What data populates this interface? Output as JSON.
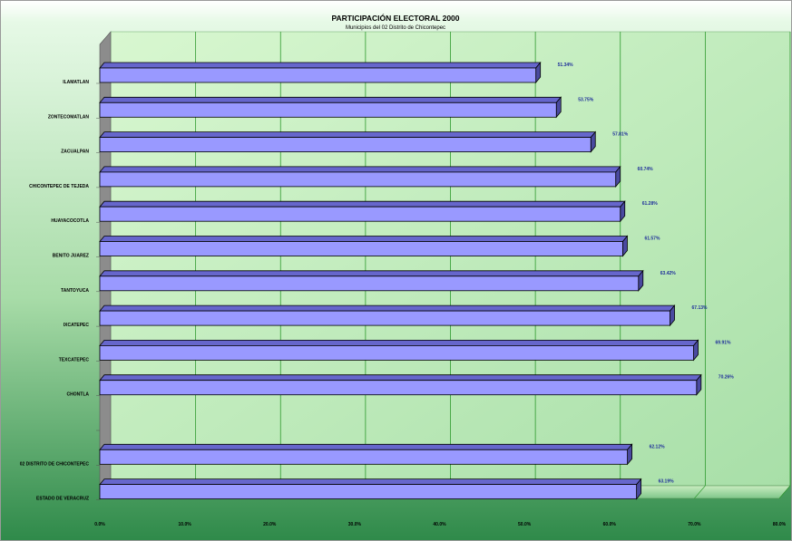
{
  "chart_data": {
    "type": "bar",
    "orientation": "horizontal",
    "style": "3d",
    "title": "PARTICIPACIÓN ELECTORAL 2000",
    "subtitle": "Municipios del 02 Distrito de Chicontepec",
    "categories": [
      "ILAMATLAN",
      "ZONTECOMATLAN",
      "ZACUALPAN",
      "CHICONTEPEC DE TEJEDA",
      "HUAYACOCOTLA",
      "BENITO JUAREZ",
      "TANTOYUCA",
      "IXCATEPEC",
      "TEXCATEPEC",
      "CHONTLA",
      "",
      "02 DISTRITO DE CHICONTEPEC",
      "ESTADO DE VERACRUZ"
    ],
    "values": [
      51.34,
      53.75,
      57.81,
      60.74,
      61.28,
      61.57,
      63.42,
      67.13,
      69.91,
      70.26,
      null,
      62.12,
      63.19
    ],
    "data_labels": [
      "51.34%",
      "53.75%",
      "57.81%",
      "60.74%",
      "61.28%",
      "61.57%",
      "63.42%",
      "67.13%",
      "69.91%",
      "70.26%",
      "",
      "62.12%",
      "63.19%"
    ],
    "x_ticks": [
      "0.0%",
      "10.0%",
      "20.0%",
      "30.0%",
      "40.0%",
      "50.0%",
      "60.0%",
      "70.0%",
      "80.0%"
    ],
    "xlim": [
      0,
      80
    ],
    "grid": true,
    "legend": "none",
    "colors": {
      "bar_front": "#9999ff",
      "bar_top": "#6666cc",
      "bar_side": "#4a4aa0",
      "label_text": "#1f2f9a",
      "gridline": "#2e9a2e",
      "wall": "#c8f0c0",
      "background_top": "#e6f9e6",
      "background_bottom": "#2f8a4a"
    }
  }
}
